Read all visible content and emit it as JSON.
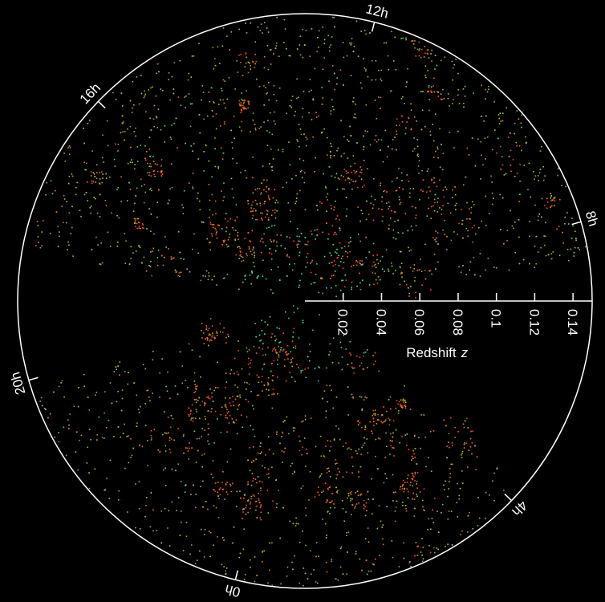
{
  "chart_data": {
    "type": "polar",
    "rlabel": "Redshift",
    "rlabel_symbol": "z",
    "rlim": [
      0,
      0.15
    ],
    "rticks": [
      0.02,
      0.04,
      0.06,
      0.08,
      0.1,
      0.12,
      0.14
    ],
    "angle_ticks": [
      {
        "value": 0,
        "label": "0h"
      },
      {
        "value": 4,
        "label": "4h"
      },
      {
        "value": 8,
        "label": "8h"
      },
      {
        "value": 12,
        "label": "12h"
      },
      {
        "value": 16,
        "label": "16h"
      },
      {
        "value": 20,
        "label": "20h"
      }
    ],
    "background": "#000000",
    "axis_color": "#ffffff"
  }
}
